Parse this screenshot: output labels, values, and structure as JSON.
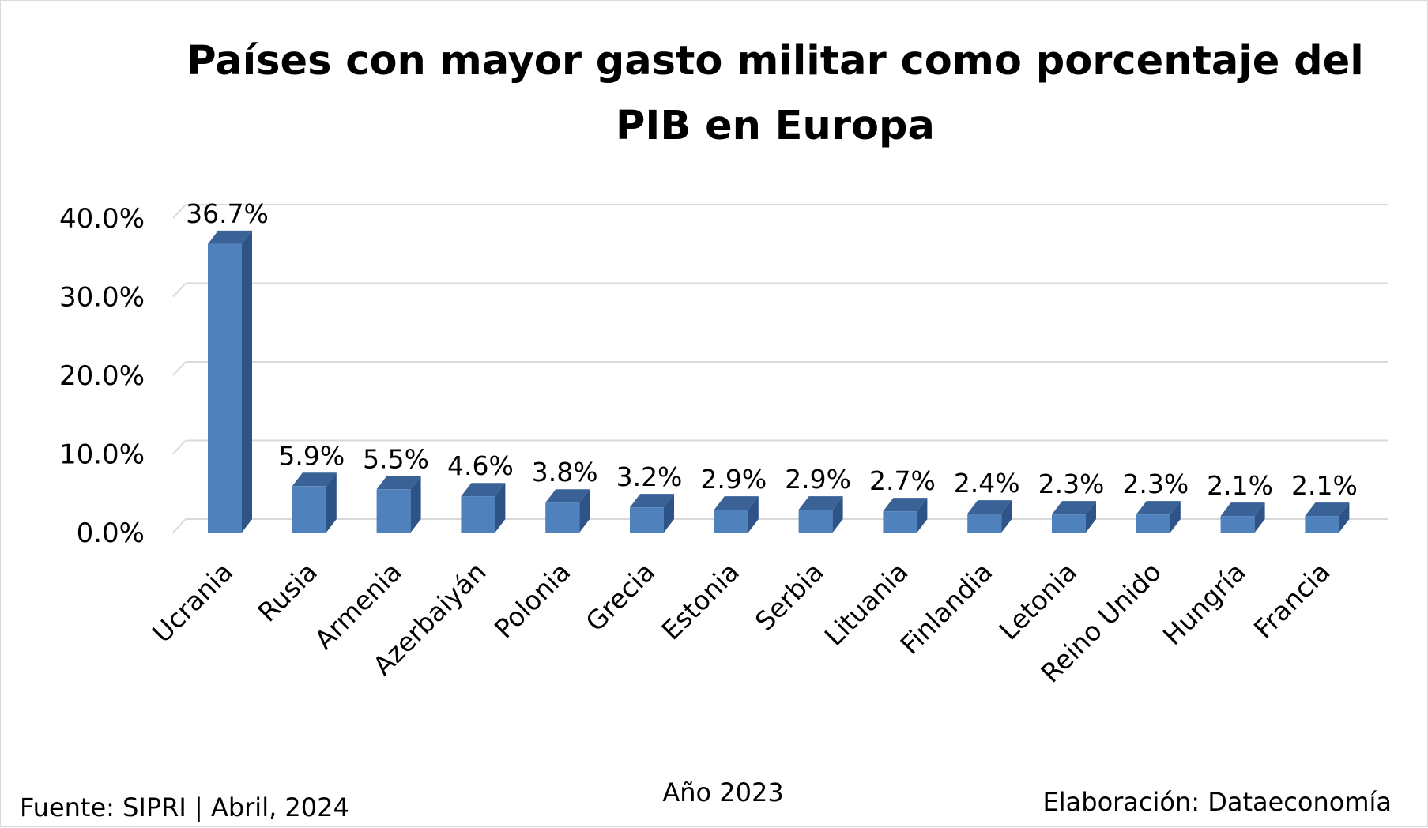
{
  "chart_data": {
    "type": "bar",
    "title_lines": [
      "Países con mayor gasto militar como porcentaje del",
      "PIB en Europa"
    ],
    "xlabel": "Año 2023",
    "ylabel": "",
    "categories": [
      "Ucrania",
      "Rusia",
      "Armenia",
      "Azerbaiyán",
      "Polonia",
      "Grecia",
      "Estonia",
      "Serbia",
      "Lituania",
      "Finlandia",
      "Letonia",
      "Reino Unido",
      "Hungría",
      "Francia"
    ],
    "values": [
      36.7,
      5.9,
      5.5,
      4.6,
      3.8,
      3.2,
      2.9,
      2.9,
      2.7,
      2.4,
      2.3,
      2.3,
      2.1,
      2.1
    ],
    "data_labels": [
      "36.7%",
      "5.9%",
      "5.5%",
      "4.6%",
      "3.8%",
      "3.2%",
      "2.9%",
      "2.9%",
      "2.7%",
      "2.4%",
      "2.3%",
      "2.3%",
      "2.1%",
      "2.1%"
    ],
    "y_ticks": [
      0,
      10,
      20,
      30,
      40
    ],
    "y_tick_labels": [
      "0.0%",
      "10.0%",
      "20.0%",
      "30.0%",
      "40.0%"
    ],
    "ylim": [
      0,
      40
    ],
    "grid": true,
    "legend": "none",
    "style": "3d-column",
    "colors": {
      "bar_front": "#4f81bd",
      "bar_side": "#2e5387",
      "bar_top": "#3a6296",
      "grid": "#d9d9d9"
    }
  },
  "footer": {
    "source": "Fuente: SIPRI | Abril, 2024",
    "credit": "Elaboración: Dataeconomía"
  }
}
